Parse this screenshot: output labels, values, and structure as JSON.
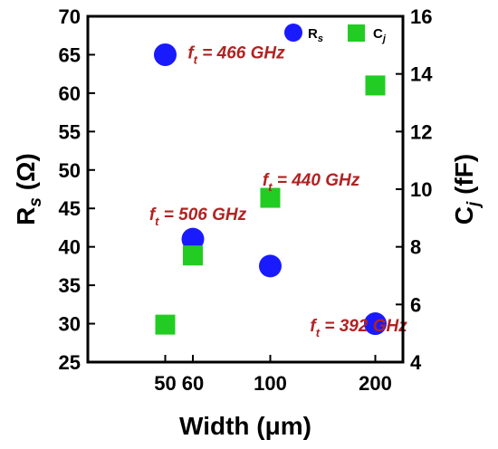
{
  "chart_data": {
    "type": "scatter",
    "title": "",
    "xlabel": "Width (μm)",
    "ylabel_left": "R_s (Ω)",
    "ylabel_right": "C_j (fF)",
    "x_scale": "log",
    "x_ticks": [
      50,
      60,
      100,
      200
    ],
    "xlim": [
      30,
      240
    ],
    "ylim_left": [
      25,
      70
    ],
    "ylim_right": [
      4,
      16
    ],
    "y_ticks_left": [
      25,
      30,
      35,
      40,
      45,
      50,
      55,
      60,
      65,
      70
    ],
    "y_ticks_right": [
      4,
      6,
      8,
      10,
      12,
      14,
      16
    ],
    "grid": false,
    "legend_position": "top-right",
    "series": [
      {
        "name": "R_s",
        "axis": "left",
        "marker": "circle",
        "color": "#1a1aff",
        "points": [
          {
            "x": 50,
            "y": 65
          },
          {
            "x": 60,
            "y": 41
          },
          {
            "x": 100,
            "y": 37.5
          },
          {
            "x": 200,
            "y": 30
          }
        ]
      },
      {
        "name": "C_j",
        "axis": "right",
        "marker": "square",
        "color": "#22cc22",
        "points": [
          {
            "x": 50,
            "y": 5.3
          },
          {
            "x": 60,
            "y": 7.7
          },
          {
            "x": 100,
            "y": 9.7
          },
          {
            "x": 200,
            "y": 13.6
          }
        ]
      }
    ],
    "annotations": [
      {
        "label": "f",
        "sub": "t",
        "text": " = 466 GHz",
        "x": 58,
        "y_left": 64.5
      },
      {
        "label": "f",
        "sub": "t",
        "text": " = 440 GHz",
        "x": 95,
        "y_left": 48
      },
      {
        "label": "f",
        "sub": "t",
        "text": " = 506 GHz",
        "x": 45,
        "y_left": 43.5
      },
      {
        "label": "f",
        "sub": "t",
        "text": " = 392 GHz",
        "x": 130,
        "y_left": 29
      }
    ],
    "annotation_color": "#b22222"
  }
}
